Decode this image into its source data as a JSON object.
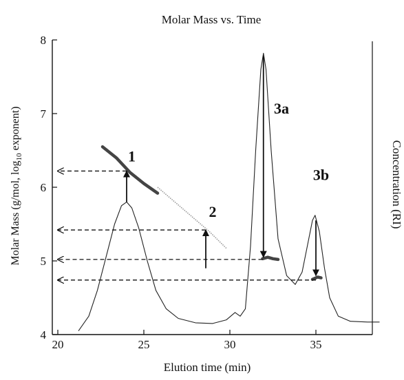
{
  "chart_data": {
    "type": "line",
    "title": "Molar Mass vs. Time",
    "xlabel": "Elution time (min)",
    "ylabel": "Molar Mass (g/mol, log",
    "ylabel_sub": "10",
    "ylabel_tail": " exponent)",
    "y2label": "Concentration (RI)",
    "xlim": [
      20,
      39
    ],
    "ylim": [
      4,
      8
    ],
    "x_ticks": [
      20,
      25,
      30,
      35
    ],
    "y_ticks": [
      4,
      5,
      6,
      7,
      8
    ],
    "x_tick_labels": [
      "20",
      "25",
      "30",
      "35"
    ],
    "y_tick_labels": [
      "4",
      "5",
      "6",
      "7",
      "8"
    ],
    "series": [
      {
        "role": "concentration",
        "style": "thin",
        "points": [
          [
            21.2,
            4.05
          ],
          [
            21.8,
            4.25
          ],
          [
            22.3,
            4.6
          ],
          [
            22.8,
            5.05
          ],
          [
            23.3,
            5.5
          ],
          [
            23.7,
            5.75
          ],
          [
            24.0,
            5.8
          ],
          [
            24.3,
            5.72
          ],
          [
            24.7,
            5.45
          ],
          [
            25.2,
            5.0
          ],
          [
            25.7,
            4.6
          ],
          [
            26.3,
            4.35
          ],
          [
            27.0,
            4.22
          ],
          [
            28.0,
            4.16
          ],
          [
            29.0,
            4.15
          ],
          [
            29.8,
            4.2
          ],
          [
            30.3,
            4.3
          ],
          [
            30.6,
            4.25
          ],
          [
            30.9,
            4.35
          ],
          [
            31.2,
            5.2
          ],
          [
            31.5,
            6.5
          ],
          [
            31.8,
            7.6
          ],
          [
            31.95,
            7.82
          ],
          [
            32.1,
            7.6
          ],
          [
            32.4,
            6.5
          ],
          [
            32.8,
            5.3
          ],
          [
            33.3,
            4.8
          ],
          [
            33.8,
            4.68
          ],
          [
            34.2,
            4.85
          ],
          [
            34.5,
            5.2
          ],
          [
            34.8,
            5.55
          ],
          [
            34.95,
            5.62
          ],
          [
            35.2,
            5.4
          ],
          [
            35.5,
            4.9
          ],
          [
            35.8,
            4.5
          ],
          [
            36.3,
            4.25
          ],
          [
            37.0,
            4.18
          ],
          [
            38.0,
            4.17
          ],
          [
            38.7,
            4.17
          ]
        ]
      },
      {
        "role": "molar-mass-1",
        "style": "thick",
        "points": [
          [
            22.6,
            6.55
          ],
          [
            23.4,
            6.4
          ],
          [
            24.2,
            6.2
          ],
          [
            25.0,
            6.05
          ],
          [
            25.8,
            5.92
          ]
        ]
      },
      {
        "role": "molar-mass-2",
        "style": "faint",
        "points": [
          [
            25.8,
            6.0
          ],
          [
            26.8,
            5.8
          ],
          [
            27.8,
            5.6
          ],
          [
            28.8,
            5.4
          ],
          [
            29.8,
            5.17
          ]
        ]
      },
      {
        "role": "molar-mass-3a",
        "style": "thick",
        "points": [
          [
            31.9,
            5.03
          ],
          [
            32.2,
            5.05
          ],
          [
            32.5,
            5.03
          ],
          [
            32.8,
            5.02
          ]
        ]
      },
      {
        "role": "molar-mass-3b",
        "style": "thick",
        "points": [
          [
            34.8,
            4.75
          ],
          [
            35.1,
            4.78
          ],
          [
            35.3,
            4.77
          ]
        ]
      }
    ],
    "peak_labels": [
      {
        "text": "1",
        "x": 24.3,
        "y": 6.35
      },
      {
        "text": "2",
        "x": 29.0,
        "y": 5.6
      },
      {
        "text": "3a",
        "x": 33.0,
        "y": 7.0
      },
      {
        "text": "3b",
        "x": 35.3,
        "y": 6.1
      }
    ],
    "vertical_arrows": [
      {
        "x": 24.0,
        "y_from": 5.8,
        "y_to": 6.22
      },
      {
        "x": 28.6,
        "y_from": 4.9,
        "y_to": 5.42
      },
      {
        "x": 31.95,
        "y_from": 7.78,
        "y_to": 5.05
      },
      {
        "x": 35.0,
        "y_from": 5.55,
        "y_to": 4.8
      }
    ],
    "horizontal_arrows": [
      {
        "y": 6.22,
        "x_from": 24.0
      },
      {
        "y": 5.42,
        "x_from": 28.6
      },
      {
        "y": 5.02,
        "x_from": 31.9
      },
      {
        "y": 4.74,
        "x_from": 35.0
      }
    ]
  }
}
